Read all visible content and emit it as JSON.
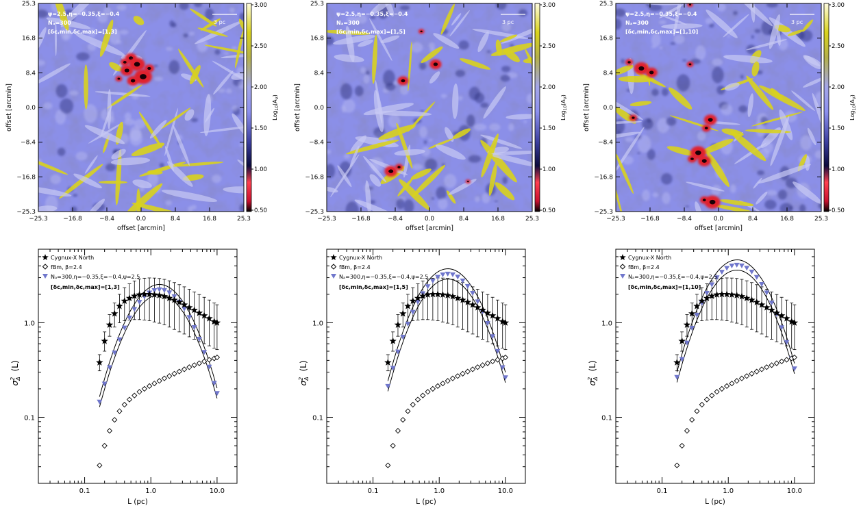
{
  "maps": [
    {
      "id": "map1",
      "ann": [
        "ψ=2.5,η=−0.35,ξ=−0.4",
        "Nₐ=300",
        "[δc,min,δc,max]=[1,3]"
      ],
      "scale_label": "3 pc",
      "xlabel": "offset [arcmin]",
      "ylabel": "offset [arcmin]",
      "ticks": [
        "-25.3",
        "-16.8",
        "-8.4",
        "0.0",
        "8.4",
        "16.8",
        "25.3"
      ],
      "red_clumps": [
        [
          -2.5,
          12.0,
          1.2
        ],
        [
          -1.0,
          10.5,
          1.6
        ],
        [
          -3.5,
          9.0,
          1.3
        ],
        [
          0.5,
          7.5,
          1.8
        ],
        [
          -2.0,
          6.5,
          1.2
        ],
        [
          -4.0,
          11.0,
          0.9
        ],
        [
          2.0,
          9.5,
          1.0
        ],
        [
          -5.5,
          7.0,
          0.7
        ]
      ]
    },
    {
      "id": "map2",
      "ann": [
        "ψ=2.5,η=−0.35,ξ=−0.4",
        "Nₐ=300",
        "[δc,min,δc,max]=[1,5]"
      ],
      "scale_label": "3 pc",
      "xlabel": "offset [arcmin]",
      "ylabel": "offset [arcmin]",
      "ticks": [
        "-25.3",
        "-16.8",
        "-8.4",
        "0.0",
        "8.4",
        "16.8",
        "25.3"
      ],
      "red_clumps": [
        [
          1.5,
          10.5,
          1.2
        ],
        [
          -6.5,
          6.5,
          1.1
        ],
        [
          -9.5,
          -15.5,
          1.3
        ],
        [
          -7.5,
          -14.5,
          0.8
        ],
        [
          -2.0,
          18.5,
          0.6
        ],
        [
          9.5,
          -18.0,
          0.5
        ]
      ]
    },
    {
      "id": "map3",
      "ann": [
        "ψ=2.5,η=−0.35,ξ=−0.4",
        "Nₐ=300",
        "[δc,min,δc,max]=[1,10]"
      ],
      "scale_label": "3 pc",
      "xlabel": "offset [arcmin]",
      "ylabel": "offset [arcmin]",
      "ticks": [
        "-25.3",
        "-16.8",
        "-8.4",
        "0.0",
        "8.4",
        "16.8",
        "25.3"
      ],
      "red_clumps": [
        [
          -19.0,
          9.5,
          1.5
        ],
        [
          -16.5,
          8.5,
          1.2
        ],
        [
          -22.0,
          11.0,
          0.8
        ],
        [
          -7.0,
          10.5,
          0.7
        ],
        [
          -2.0,
          -3.0,
          1.3
        ],
        [
          -3.0,
          -5.0,
          0.9
        ],
        [
          -5.0,
          -11.0,
          1.6
        ],
        [
          -3.5,
          -13.0,
          1.3
        ],
        [
          -6.5,
          -12.5,
          0.9
        ],
        [
          -1.5,
          -23.0,
          1.6
        ],
        [
          -3.5,
          -22.5,
          0.9
        ],
        [
          -21.0,
          -2.5,
          0.8
        ],
        [
          -7.0,
          25.0,
          0.6
        ]
      ]
    }
  ],
  "colorbar": {
    "label": "Log10(A_V)",
    "ticks": [
      "3.00",
      "2.50",
      "2.00",
      "1.50",
      "1.00",
      "0.50"
    ]
  },
  "chart_data": [
    {
      "type": "scatter",
      "xlabel": "L (pc)",
      "ylabel": "σ²Δ (L)",
      "xscale": "log",
      "yscale": "log",
      "xlim": [
        0.02,
        20
      ],
      "ylim": [
        0.02,
        6
      ],
      "x_ticks": [
        "0.1",
        "1.0",
        "10.0"
      ],
      "y_ticks": [
        "0.1",
        "1.0"
      ],
      "legend": [
        "Cygnux-X North",
        "fBm, β=2.4",
        "Nₐ=300,η=−0.35,ξ=−0.4,ψ=2.5",
        "[δc,min,δc,max]=[1,3]"
      ],
      "model_peak": 2.25,
      "model_peak_L": 1.35
    },
    {
      "type": "scatter",
      "xlabel": "L (pc)",
      "ylabel": "σ²Δ (L)",
      "xscale": "log",
      "yscale": "log",
      "xlim": [
        0.02,
        20
      ],
      "ylim": [
        0.02,
        6
      ],
      "x_ticks": [
        "0.1",
        "1.0",
        "10.0"
      ],
      "y_ticks": [
        "0.1",
        "1.0"
      ],
      "legend": [
        "Cygnux-X North",
        "fBm, β=2.4",
        "Nₐ=300,η=−0.35,ξ=−0.4,ψ=2.5",
        "[δc,min,δc,max]=[1,5]"
      ],
      "model_peak": 3.3,
      "model_peak_L": 1.35
    },
    {
      "type": "scatter",
      "xlabel": "L (pc)",
      "ylabel": "σ²Δ (L)",
      "xscale": "log",
      "yscale": "log",
      "xlim": [
        0.02,
        20
      ],
      "ylim": [
        0.02,
        6
      ],
      "x_ticks": [
        "0.1",
        "1.0",
        "10.0"
      ],
      "y_ticks": [
        "0.1",
        "1.0"
      ],
      "legend": [
        "Cygnux-X North",
        "fBm, β=2.4",
        "Nₐ=300,η=−0.35,ξ=−0.4,ψ=2.5",
        "[δc,min,δc,max]=[1,10]"
      ],
      "model_peak": 4.1,
      "model_peak_L": 1.35
    }
  ],
  "shared_series": {
    "L": [
      0.168,
      0.2,
      0.238,
      0.283,
      0.336,
      0.4,
      0.475,
      0.565,
      0.672,
      0.8,
      0.951,
      1.131,
      1.345,
      1.6,
      1.903,
      2.262,
      2.691,
      3.2,
      3.805,
      4.525,
      5.382,
      6.4,
      7.611,
      9.051,
      10.0
    ],
    "observed": [
      0.38,
      0.64,
      0.95,
      1.25,
      1.5,
      1.7,
      1.82,
      1.92,
      1.98,
      2.0,
      2.0,
      1.98,
      1.95,
      1.9,
      1.82,
      1.74,
      1.65,
      1.55,
      1.45,
      1.36,
      1.27,
      1.19,
      1.11,
      1.03,
      1.0
    ],
    "obs_err_lo": [
      0.31,
      0.5,
      0.72,
      0.9,
      1.0,
      1.05,
      1.07,
      1.08,
      1.08,
      1.07,
      1.05,
      1.02,
      0.99,
      0.95,
      0.9,
      0.85,
      0.8,
      0.76,
      0.71,
      0.67,
      0.63,
      0.6,
      0.57,
      0.54,
      0.52
    ],
    "obs_err_hi": [
      0.46,
      0.8,
      1.22,
      1.62,
      2.0,
      2.35,
      2.58,
      2.77,
      2.9,
      2.96,
      2.98,
      2.97,
      2.94,
      2.88,
      2.78,
      2.66,
      2.53,
      2.4,
      2.26,
      2.12,
      1.99,
      1.86,
      1.74,
      1.62,
      1.55
    ],
    "fbm": [
      0.031,
      0.05,
      0.072,
      0.094,
      0.116,
      0.136,
      0.154,
      0.17,
      0.186,
      0.2,
      0.214,
      0.228,
      0.243,
      0.258,
      0.273,
      0.289,
      0.305,
      0.322,
      0.339,
      0.356,
      0.373,
      0.39,
      0.406,
      0.42,
      0.43
    ]
  }
}
